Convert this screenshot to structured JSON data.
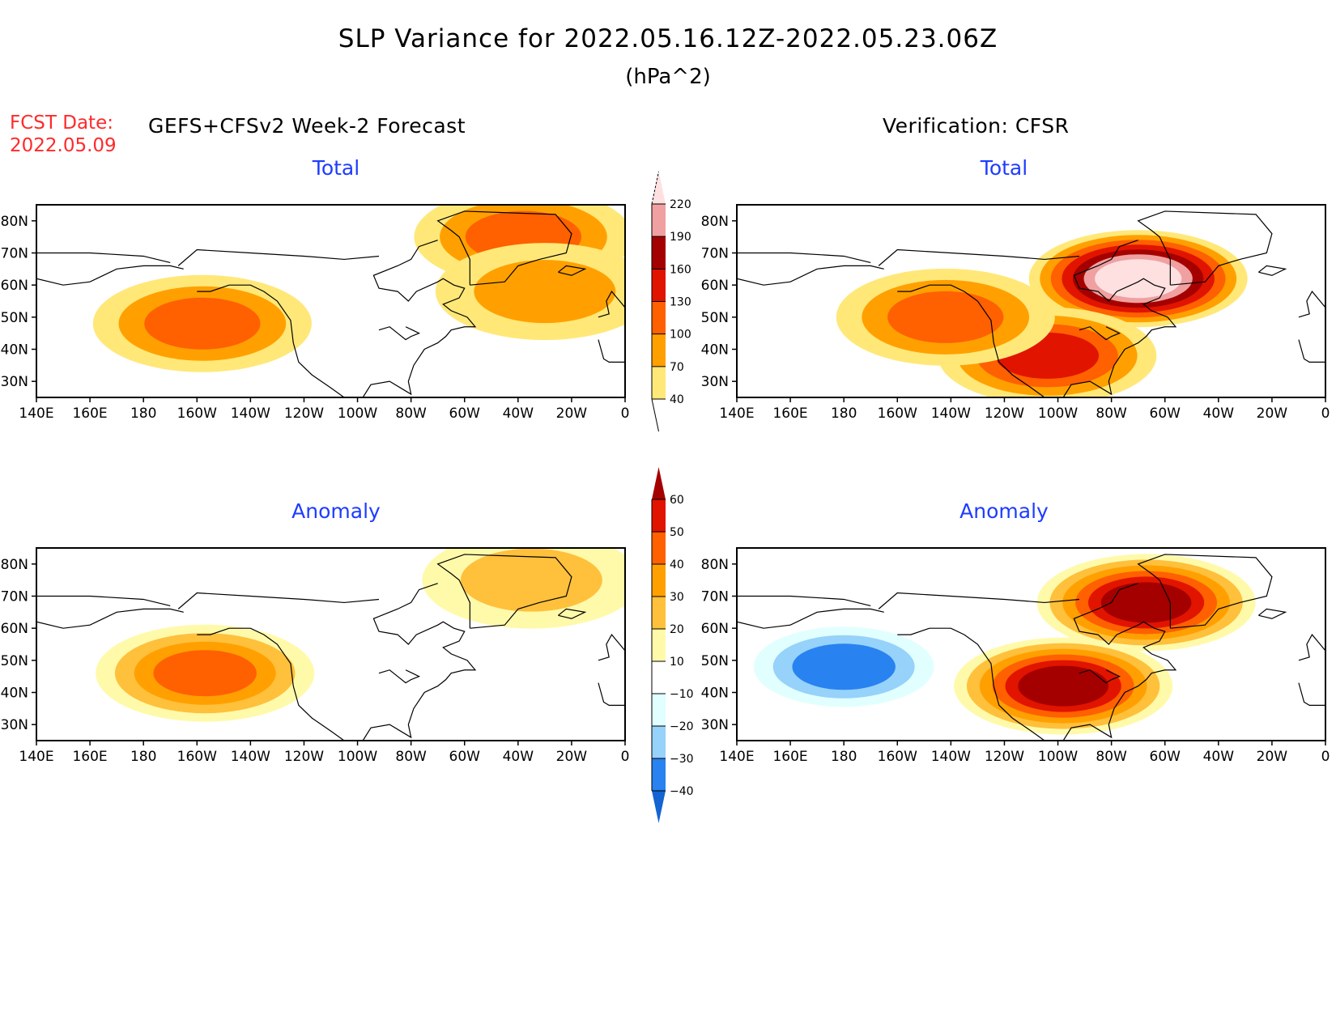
{
  "header": {
    "title": "SLP Variance for 2022.05.16.12Z-2022.05.23.06Z",
    "units": "(hPa^2)",
    "fcst_date_label": "FCST Date:",
    "fcst_date_value": "2022.05.09",
    "left_column_heading": "GEFS+CFSv2 Week-2 Forecast",
    "right_column_heading": "Verification: CFSR"
  },
  "colors": {
    "title_text": "#000000",
    "fcst_date_text": "#ff2a2a",
    "panel_subtitle_text": "#1e3cff"
  },
  "chart_data": [
    {
      "type": "heatmap",
      "panel": "forecast-total",
      "title": "Total",
      "xlabel": "",
      "ylabel": "",
      "x_ticks": [
        "140E",
        "160E",
        "180",
        "160W",
        "140W",
        "120W",
        "100W",
        "80W",
        "60W",
        "40W",
        "20W",
        "0"
      ],
      "y_ticks": [
        "30N",
        "40N",
        "50N",
        "60N",
        "70N",
        "80N"
      ],
      "xlim": [
        140,
        360
      ],
      "ylim": [
        25,
        85
      ],
      "colorbar": "total",
      "features": [
        {
          "label": "North Pacific maximum",
          "lon": 202,
          "lat": 48,
          "level": 100
        },
        {
          "label": "Greenland maximum",
          "lon": 322,
          "lat": 75,
          "level": 100
        },
        {
          "label": "Mid-Atlantic maximum",
          "lon": 330,
          "lat": 58,
          "level": 70
        }
      ]
    },
    {
      "type": "heatmap",
      "panel": "verification-total",
      "title": "Total",
      "xlabel": "",
      "ylabel": "",
      "x_ticks": [
        "140E",
        "160E",
        "180",
        "160W",
        "140W",
        "120W",
        "100W",
        "80W",
        "60W",
        "40W",
        "20W",
        "0"
      ],
      "y_ticks": [
        "30N",
        "40N",
        "50N",
        "60N",
        "70N",
        "80N"
      ],
      "xlim": [
        140,
        360
      ],
      "ylim": [
        25,
        85
      ],
      "colorbar": "total",
      "features": [
        {
          "label": "Hudson Bay / Labrador maximum",
          "lon": 290,
          "lat": 62,
          "level": 220
        },
        {
          "label": "Central US maximum",
          "lon": 256,
          "lat": 38,
          "level": 130
        },
        {
          "label": "Gulf of Alaska maximum",
          "lon": 218,
          "lat": 50,
          "level": 100
        }
      ]
    },
    {
      "type": "heatmap",
      "panel": "forecast-anomaly",
      "title": "Anomaly",
      "xlabel": "",
      "ylabel": "",
      "x_ticks": [
        "140E",
        "160E",
        "180",
        "160W",
        "140W",
        "120W",
        "100W",
        "80W",
        "60W",
        "40W",
        "20W",
        "0"
      ],
      "y_ticks": [
        "30N",
        "40N",
        "50N",
        "60N",
        "70N",
        "80N"
      ],
      "xlim": [
        140,
        360
      ],
      "ylim": [
        25,
        85
      ],
      "colorbar": "anomaly",
      "features": [
        {
          "label": "NE Pacific positive anomaly",
          "lon": 203,
          "lat": 46,
          "level": 40
        },
        {
          "label": "Greenland positive anomaly",
          "lon": 325,
          "lat": 75,
          "level": 20
        }
      ]
    },
    {
      "type": "heatmap",
      "panel": "verification-anomaly",
      "title": "Anomaly",
      "xlabel": "",
      "ylabel": "",
      "x_ticks": [
        "140E",
        "160E",
        "180",
        "160W",
        "140W",
        "120W",
        "100W",
        "80W",
        "60W",
        "40W",
        "20W",
        "0"
      ],
      "y_ticks": [
        "30N",
        "40N",
        "50N",
        "60N",
        "70N",
        "80N"
      ],
      "xlim": [
        140,
        360
      ],
      "ylim": [
        25,
        85
      ],
      "colorbar": "anomaly",
      "features": [
        {
          "label": "Central US positive anomaly",
          "lon": 262,
          "lat": 42,
          "level": 60
        },
        {
          "label": "Labrador positive anomaly",
          "lon": 293,
          "lat": 68,
          "level": 60
        },
        {
          "label": "North Pacific negative anomaly",
          "lon": 180,
          "lat": 48,
          "level": -40
        }
      ]
    }
  ],
  "colorbars": {
    "total": {
      "levels": [
        "40",
        "70",
        "100",
        "130",
        "160",
        "190",
        "220"
      ],
      "colors": [
        "#ffe878",
        "#ffa000",
        "#ff6000",
        "#e11400",
        "#a50000",
        "#f0a0a0",
        "#ffe0e0"
      ]
    },
    "anomaly": {
      "levels": [
        "-40",
        "-30",
        "-20",
        "-10",
        "10",
        "20",
        "30",
        "40",
        "50",
        "60"
      ],
      "colors": [
        "#1464d2",
        "#2882f0",
        "#96d2fa",
        "#e1ffff",
        "#ffffff",
        "#fffaaa",
        "#ffc03c",
        "#ffa000",
        "#ff6000",
        "#e11400",
        "#a50000"
      ]
    }
  }
}
